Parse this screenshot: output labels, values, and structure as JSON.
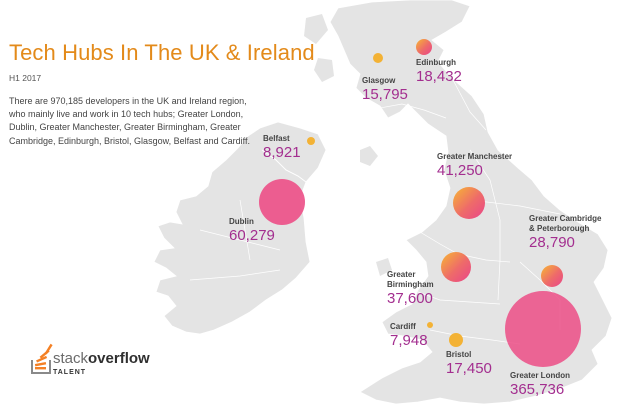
{
  "header": {
    "title": "Tech Hubs In The UK & Ireland",
    "subtitle": "H1 2017",
    "description": "There are 970,185 developers in the UK and Ireland region, who mainly live and work in 10 tech hubs; Greater London, Dublin, Greater Manchester, Greater Birmingham, Greater Cambridge, Edinburgh, Bristol, Glasgow, Belfast and Cardiff."
  },
  "colors": {
    "land": "#e4e4e4",
    "border": "#ffffff",
    "title": "#e38a1a",
    "value": "#a32e8f",
    "bubble_small": "#f3b235",
    "bubble_large": "#ec4e86"
  },
  "hubs": [
    {
      "name": "Greater London",
      "value": "365,736",
      "developers": 365736
    },
    {
      "name": "Dublin",
      "value": "60,279",
      "developers": 60279
    },
    {
      "name": "Greater Manchester",
      "value": "41,250",
      "developers": 41250
    },
    {
      "name": "Greater Birmingham",
      "value": "37,600",
      "developers": 37600
    },
    {
      "name": "Greater Cambridge & Peterborough",
      "value": "28,790",
      "developers": 28790
    },
    {
      "name": "Edinburgh",
      "value": "18,432",
      "developers": 18432
    },
    {
      "name": "Bristol",
      "value": "17,450",
      "developers": 17450
    },
    {
      "name": "Glasgow",
      "value": "15,795",
      "developers": 15795
    },
    {
      "name": "Belfast",
      "value": "8,921",
      "developers": 8921
    },
    {
      "name": "Cardiff",
      "value": "7,948",
      "developers": 7948
    }
  ],
  "logo": {
    "stack": "stack",
    "overflow": "overflow",
    "talent": "TALENT"
  }
}
